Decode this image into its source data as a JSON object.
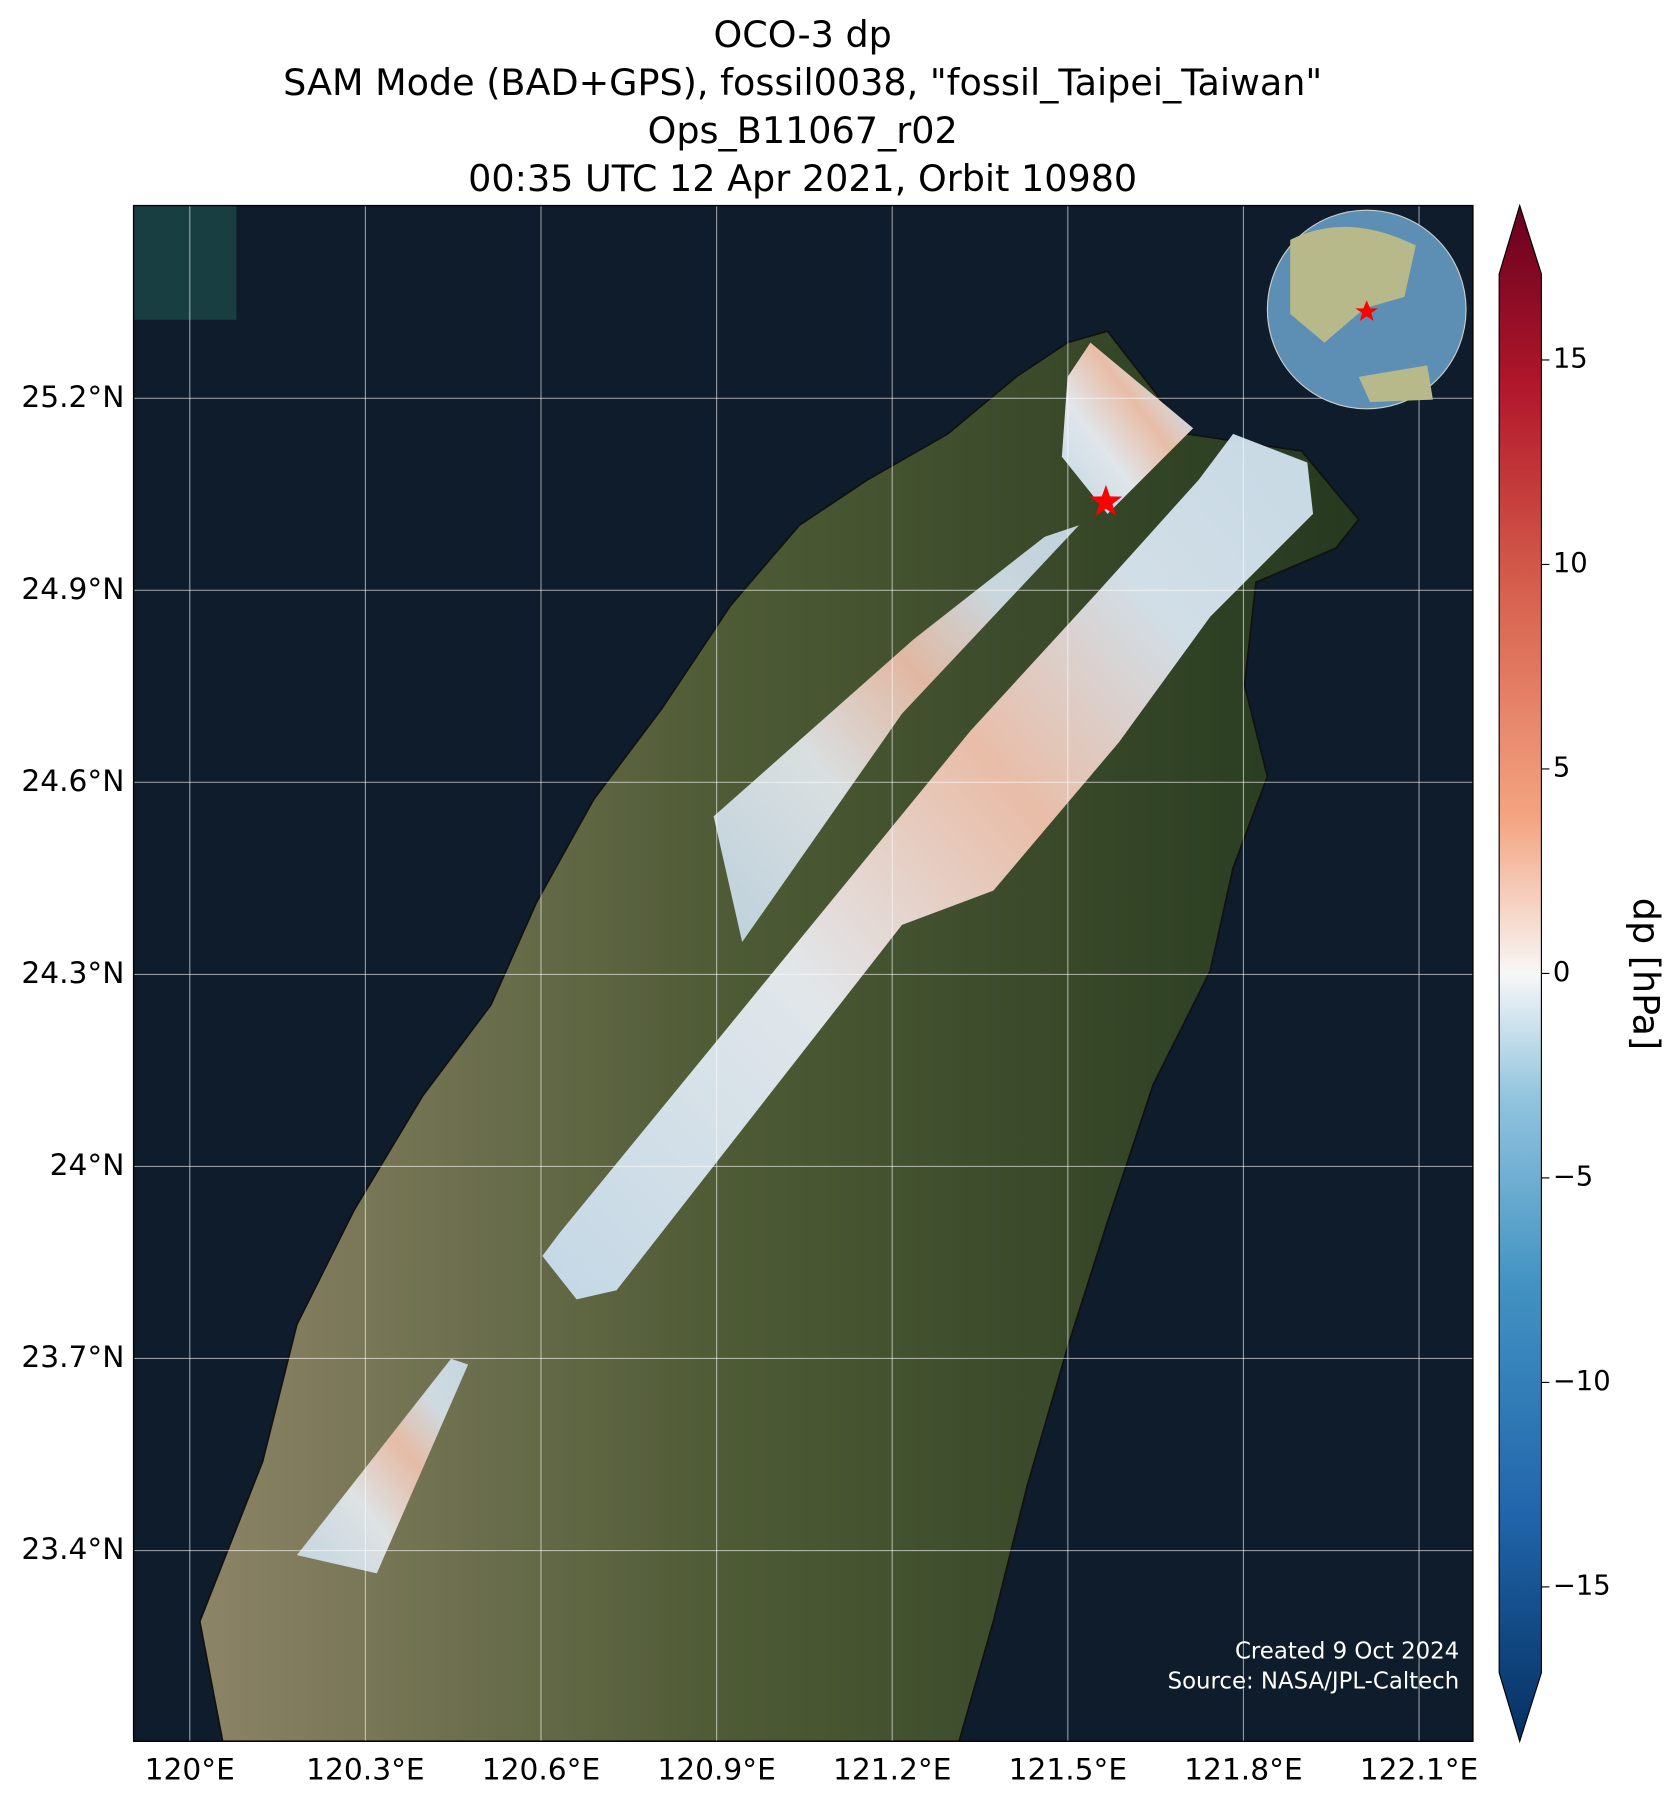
{
  "chart_data": {
    "type": "map",
    "title": [
      "OCO-3 dp",
      "SAM Mode (BAD+GPS), fossil0038, \"fossil_Taipei_Taiwan\"",
      "Ops_B11067_r02",
      "00:35 UTC 12 Apr 2021, Orbit 10980"
    ],
    "xlim": [
      119.904,
      122.192
    ],
    "ylim": [
      23.102,
      25.501
    ],
    "xticks": [
      {
        "value": 120,
        "label": "120°E"
      },
      {
        "value": 120.3,
        "label": "120.3°E"
      },
      {
        "value": 120.6,
        "label": "120.6°E"
      },
      {
        "value": 120.9,
        "label": "120.9°E"
      },
      {
        "value": 121.2,
        "label": "121.2°E"
      },
      {
        "value": 121.5,
        "label": "121.5°E"
      },
      {
        "value": 121.8,
        "label": "121.8°E"
      },
      {
        "value": 122.1,
        "label": "122.1°E"
      }
    ],
    "yticks": [
      {
        "value": 23.4,
        "label": "23.4°N"
      },
      {
        "value": 23.7,
        "label": "23.7°N"
      },
      {
        "value": 24,
        "label": "24°N"
      },
      {
        "value": 24.3,
        "label": "24.3°N"
      },
      {
        "value": 24.6,
        "label": "24.6°N"
      },
      {
        "value": 24.9,
        "label": "24.9°N"
      },
      {
        "value": 25.2,
        "label": "25.2°N"
      }
    ],
    "grid": true,
    "target": {
      "lon": 121.565,
      "lat": 25.038,
      "color": "#ff0000"
    },
    "colorbar": {
      "label": "dp [hPa]",
      "lim": [
        -17.1,
        17.1
      ],
      "ticks": [
        {
          "value": -15,
          "label": "−15"
        },
        {
          "value": -10,
          "label": "−10"
        },
        {
          "value": -5,
          "label": "−5"
        },
        0,
        5,
        10,
        15
      ]
    },
    "credits": [
      "Created 9 Oct 2024",
      "Source: NASA/JPL-Caltech"
    ]
  }
}
